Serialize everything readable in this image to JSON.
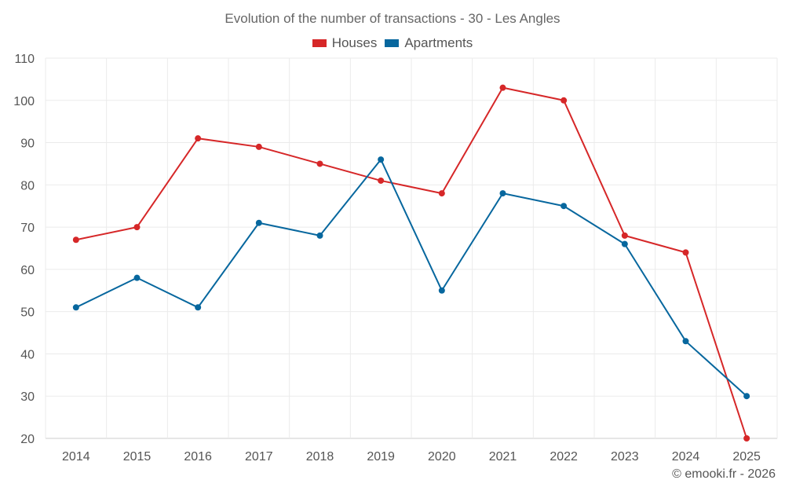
{
  "colors": {
    "houses": "#d62728",
    "apartments": "#07679e",
    "grid": "#ebebeb",
    "axis": "#cccccc"
  },
  "chart_data": {
    "type": "line",
    "title": "Evolution of the number of transactions - 30 - Les Angles",
    "xlabel": "",
    "ylabel": "",
    "categories": [
      "2014",
      "2015",
      "2016",
      "2017",
      "2018",
      "2019",
      "2020",
      "2021",
      "2022",
      "2023",
      "2024",
      "2025"
    ],
    "ylim": [
      20,
      110
    ],
    "yticks": [
      20,
      30,
      40,
      50,
      60,
      70,
      80,
      90,
      100,
      110
    ],
    "grid": true,
    "legend_position": "top-center",
    "series": [
      {
        "name": "Houses",
        "key": "houses",
        "values": [
          67,
          70,
          91,
          89,
          85,
          81,
          78,
          103,
          100,
          68,
          64,
          20
        ]
      },
      {
        "name": "Apartments",
        "key": "apartments",
        "values": [
          51,
          58,
          51,
          71,
          68,
          86,
          55,
          78,
          75,
          66,
          43,
          30
        ]
      }
    ]
  },
  "footer": {
    "copyright": "© emooki.fr - 2026"
  }
}
